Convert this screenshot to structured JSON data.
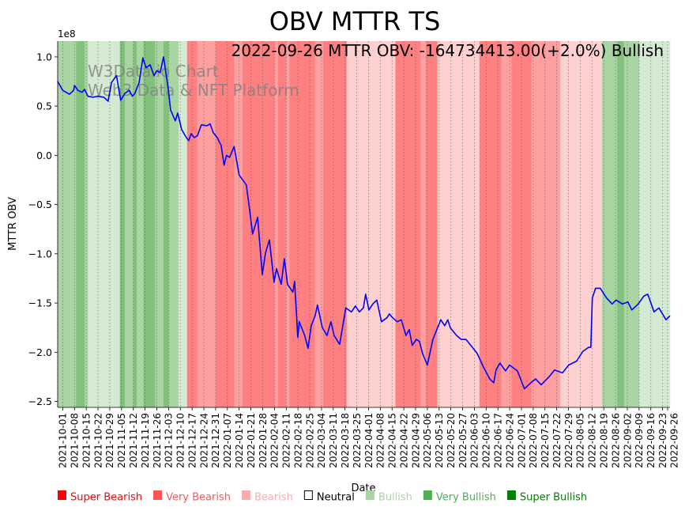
{
  "chart_data": {
    "type": "line",
    "title": "OBV MTTR TS",
    "xlabel": "Date",
    "ylabel": "MTTR OBV",
    "y_offset_label": "1e8",
    "y_unit_scale": 100000000,
    "ylim": [
      -2.56,
      1.16
    ],
    "yticks": [
      1.0,
      0.5,
      0.0,
      -0.5,
      -1.0,
      -1.5,
      -2.0,
      -2.5
    ],
    "ytick_labels": [
      "1.0",
      "0.5",
      "0.0",
      "−0.5",
      "−1.0",
      "−1.5",
      "−2.0",
      "−2.5"
    ],
    "x_origin_date": "2021-09-28",
    "x_unit": "days since origin date",
    "xlim": [
      0,
      364.4
    ],
    "xtick_days": [
      3,
      10,
      17,
      24,
      31,
      38,
      45,
      52,
      59,
      66,
      73,
      80,
      87,
      94,
      101,
      108,
      115,
      122,
      129,
      136,
      143,
      150,
      157,
      164,
      171,
      178,
      185,
      192,
      199,
      206,
      213,
      220,
      227,
      234,
      241,
      248,
      255,
      262,
      269,
      276,
      283,
      290,
      297,
      304,
      311,
      318,
      325,
      332,
      339,
      346,
      353,
      360,
      363
    ],
    "xtick_labels": [
      "2021-10-01",
      "2021-10-08",
      "2021-10-15",
      "2021-10-22",
      "2021-10-29",
      "2021-11-05",
      "2021-11-12",
      "2021-11-19",
      "2021-11-26",
      "2021-12-03",
      "2021-12-10",
      "2021-12-17",
      "2021-12-24",
      "2021-12-31",
      "2022-01-07",
      "2022-01-14",
      "2022-01-21",
      "2022-01-28",
      "2022-02-04",
      "2022-02-11",
      "2022-02-18",
      "2022-02-25",
      "2022-03-04",
      "2022-03-11",
      "2022-03-18",
      "2022-03-25",
      "2022-04-01",
      "2022-04-08",
      "2022-04-15",
      "2022-04-22",
      "2022-04-29",
      "2022-05-06",
      "2022-05-13",
      "2022-05-20",
      "2022-05-27",
      "2022-06-03",
      "2022-06-10",
      "2022-06-17",
      "2022-06-24",
      "2022-07-01",
      "2022-07-08",
      "2022-07-15",
      "2022-07-22",
      "2022-07-29",
      "2022-08-05",
      "2022-08-12",
      "2022-08-19",
      "2022-08-26",
      "2022-09-02",
      "2022-09-09",
      "2022-09-16",
      "2022-09-23",
      "2022-09-26"
    ],
    "grid": "vertical dotted",
    "series": [
      {
        "name": "MTTR OBV",
        "color": "#0000ff",
        "points": [
          [
            0,
            0.75
          ],
          [
            3,
            0.66
          ],
          [
            7,
            0.62
          ],
          [
            9.5,
            0.66
          ],
          [
            10,
            0.71
          ],
          [
            12,
            0.66
          ],
          [
            14.5,
            0.64
          ],
          [
            16,
            0.67
          ],
          [
            18,
            0.6
          ],
          [
            21,
            0.59
          ],
          [
            24,
            0.6
          ],
          [
            27.5,
            0.59
          ],
          [
            30,
            0.55
          ],
          [
            32,
            0.74
          ],
          [
            35,
            0.81
          ],
          [
            37.5,
            0.56
          ],
          [
            40,
            0.63
          ],
          [
            42.5,
            0.66
          ],
          [
            44.5,
            0.6
          ],
          [
            46,
            0.63
          ],
          [
            48.5,
            0.74
          ],
          [
            50.7,
            0.99
          ],
          [
            52.6,
            0.89
          ],
          [
            55,
            0.92
          ],
          [
            57.3,
            0.81
          ],
          [
            59,
            0.86
          ],
          [
            61,
            0.84
          ],
          [
            63,
            1.0
          ],
          [
            65.8,
            0.68
          ],
          [
            67.2,
            0.46
          ],
          [
            70,
            0.35
          ],
          [
            71.4,
            0.43
          ],
          [
            73.8,
            0.26
          ],
          [
            76.6,
            0.18
          ],
          [
            78,
            0.15
          ],
          [
            79.4,
            0.22
          ],
          [
            81.3,
            0.18
          ],
          [
            83.2,
            0.2
          ],
          [
            85.5,
            0.31
          ],
          [
            88.8,
            0.3
          ],
          [
            90.7,
            0.32
          ],
          [
            92.6,
            0.23
          ],
          [
            95,
            0.18
          ],
          [
            97.3,
            0.1
          ],
          [
            99,
            -0.1
          ],
          [
            100.5,
            0.0
          ],
          [
            102.3,
            -0.02
          ],
          [
            105,
            0.09
          ],
          [
            108,
            -0.2
          ],
          [
            112.3,
            -0.3
          ],
          [
            114.2,
            -0.55
          ],
          [
            116,
            -0.8
          ],
          [
            119,
            -0.63
          ],
          [
            121.8,
            -1.21
          ],
          [
            123.7,
            -0.99
          ],
          [
            126,
            -0.86
          ],
          [
            128.8,
            -1.29
          ],
          [
            130.2,
            -1.15
          ],
          [
            133,
            -1.31
          ],
          [
            134.9,
            -1.05
          ],
          [
            136.8,
            -1.31
          ],
          [
            140,
            -1.39
          ],
          [
            141,
            -1.28
          ],
          [
            142.9,
            -1.85
          ],
          [
            143.8,
            -1.69
          ],
          [
            147,
            -1.83
          ],
          [
            149,
            -1.96
          ],
          [
            150.9,
            -1.73
          ],
          [
            153.2,
            -1.63
          ],
          [
            154.6,
            -1.52
          ],
          [
            157.5,
            -1.75
          ],
          [
            160.3,
            -1.83
          ],
          [
            162.6,
            -1.69
          ],
          [
            164.5,
            -1.83
          ],
          [
            167.8,
            -1.92
          ],
          [
            171.5,
            -1.55
          ],
          [
            174.8,
            -1.59
          ],
          [
            177.2,
            -1.53
          ],
          [
            179.5,
            -1.59
          ],
          [
            181.9,
            -1.55
          ],
          [
            183.3,
            -1.41
          ],
          [
            185.2,
            -1.57
          ],
          [
            187.5,
            -1.51
          ],
          [
            189.9,
            -1.47
          ],
          [
            192.7,
            -1.69
          ],
          [
            196,
            -1.65
          ],
          [
            197.4,
            -1.61
          ],
          [
            199.3,
            -1.65
          ],
          [
            202.1,
            -1.69
          ],
          [
            204.5,
            -1.67
          ],
          [
            207.3,
            -1.83
          ],
          [
            209.2,
            -1.77
          ],
          [
            211,
            -1.93
          ],
          [
            213.4,
            -1.87
          ],
          [
            215.3,
            -1.89
          ],
          [
            217.1,
            -2.01
          ],
          [
            220,
            -2.13
          ],
          [
            223.3,
            -1.87
          ],
          [
            228,
            -1.67
          ],
          [
            230.3,
            -1.73
          ],
          [
            232.2,
            -1.67
          ],
          [
            233.6,
            -1.75
          ],
          [
            237.4,
            -1.83
          ],
          [
            240.2,
            -1.87
          ],
          [
            243,
            -1.87
          ],
          [
            246.8,
            -1.95
          ],
          [
            249.6,
            -2.01
          ],
          [
            253.4,
            -2.15
          ],
          [
            257.1,
            -2.27
          ],
          [
            259.5,
            -2.31
          ],
          [
            260.9,
            -2.18
          ],
          [
            263.2,
            -2.11
          ],
          [
            266.5,
            -2.19
          ],
          [
            268.9,
            -2.13
          ],
          [
            273.6,
            -2.19
          ],
          [
            277.8,
            -2.37
          ],
          [
            281.6,
            -2.31
          ],
          [
            284.4,
            -2.27
          ],
          [
            287.7,
            -2.33
          ],
          [
            292.4,
            -2.25
          ],
          [
            295.7,
            -2.18
          ],
          [
            300.4,
            -2.21
          ],
          [
            304.1,
            -2.13
          ],
          [
            308.8,
            -2.09
          ],
          [
            312.6,
            -1.99
          ],
          [
            315.9,
            -1.95
          ],
          [
            317.3,
            -1.95
          ],
          [
            318.2,
            -1.45
          ],
          [
            320.1,
            -1.35
          ],
          [
            322.9,
            -1.35
          ],
          [
            326.7,
            -1.45
          ],
          [
            330,
            -1.51
          ],
          [
            332.3,
            -1.47
          ],
          [
            336.1,
            -1.51
          ],
          [
            339.4,
            -1.49
          ],
          [
            341.7,
            -1.57
          ],
          [
            345.5,
            -1.51
          ],
          [
            348.8,
            -1.43
          ],
          [
            351.2,
            -1.41
          ],
          [
            354.9,
            -1.59
          ],
          [
            357.8,
            -1.55
          ],
          [
            362,
            -1.67
          ],
          [
            364.4,
            -1.63
          ]
        ]
      }
    ],
    "regime_bands": [
      [
        0,
        11,
        "medium_green"
      ],
      [
        11,
        16,
        "dark_green"
      ],
      [
        16,
        18,
        "medium_green"
      ],
      [
        18,
        37,
        "light_green"
      ],
      [
        37,
        40,
        "dark_green"
      ],
      [
        40,
        45,
        "medium_green"
      ],
      [
        45,
        47,
        "dark_green"
      ],
      [
        47,
        51,
        "medium_green"
      ],
      [
        51,
        58,
        "dark_green"
      ],
      [
        58,
        63,
        "medium_green"
      ],
      [
        63,
        66,
        "dark_green"
      ],
      [
        66,
        72,
        "medium_green"
      ],
      [
        72,
        77,
        "light_green"
      ],
      [
        77,
        83,
        "dark_red"
      ],
      [
        83,
        94,
        "medium_red"
      ],
      [
        94,
        105,
        "dark_red"
      ],
      [
        105,
        110,
        "medium_red"
      ],
      [
        110,
        129,
        "dark_red"
      ],
      [
        129,
        131,
        "medium_red"
      ],
      [
        131,
        136,
        "dark_red"
      ],
      [
        136,
        138,
        "medium_red"
      ],
      [
        138,
        153,
        "dark_red"
      ],
      [
        153,
        158,
        "medium_red"
      ],
      [
        158,
        172,
        "dark_red"
      ],
      [
        172,
        201,
        "light_red"
      ],
      [
        201,
        216,
        "dark_red"
      ],
      [
        216,
        219,
        "medium_red"
      ],
      [
        219,
        226,
        "dark_red"
      ],
      [
        226,
        251,
        "light_red"
      ],
      [
        251,
        264,
        "dark_red"
      ],
      [
        264,
        270,
        "medium_red"
      ],
      [
        270,
        282,
        "dark_red"
      ],
      [
        282,
        299,
        "medium_red"
      ],
      [
        299,
        324,
        "light_red"
      ],
      [
        324,
        333,
        "medium_green"
      ],
      [
        333,
        337,
        "dark_green"
      ],
      [
        337,
        346,
        "medium_green"
      ],
      [
        346,
        364.4,
        "light_green"
      ]
    ],
    "band_colors": {
      "light_green": "#d5ead2",
      "medium_green": "#a9d5a3",
      "dark_green": "#82c17c",
      "light_red": "#ffd0d0",
      "medium_red": "#ffa0a0",
      "dark_red": "#ff8080"
    },
    "annotation": "2022-09-26 MTTR OBV: -164734413.00(+2.0%) Bullish",
    "watermark": [
      "W3Data.io Chart",
      "Web3 Data & NFT Platform"
    ],
    "legend": {
      "placement": "bottom",
      "items": [
        {
          "label": "Super Bearish",
          "color": "#ff0000",
          "text_color": "#ff0000",
          "hollow": false
        },
        {
          "label": "Very Bearish",
          "color": "#ff5555",
          "text_color": "#ff5555",
          "hollow": false
        },
        {
          "label": "Bearish",
          "color": "#ffaaaa",
          "text_color": "#ffaaaa",
          "hollow": false
        },
        {
          "label": "Neutral",
          "color": "#000000",
          "text_color": "#000000",
          "hollow": true
        },
        {
          "label": "Bullish",
          "color": "#a8d5a2",
          "text_color": "#a8d5a2",
          "hollow": false
        },
        {
          "label": "Very Bullish",
          "color": "#4caf50",
          "text_color": "#4caf50",
          "hollow": false
        },
        {
          "label": "Super Bullish",
          "color": "#008000",
          "text_color": "#008000",
          "hollow": false
        }
      ]
    }
  }
}
